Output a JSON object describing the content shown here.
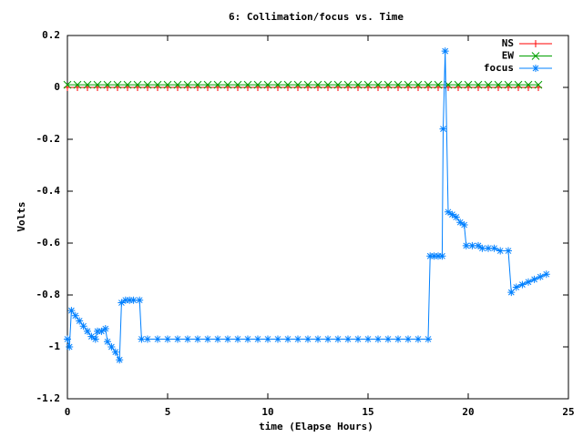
{
  "chart_data": {
    "type": "line",
    "title": "6: Collimation/focus vs. Time",
    "xlabel": "time (Elapse Hours)",
    "ylabel": "Volts",
    "xlim": [
      0,
      25
    ],
    "xticks": [
      0,
      5,
      10,
      15,
      20,
      25
    ],
    "ylim": [
      -1.2,
      0.2
    ],
    "yticks": [
      0.2,
      0,
      -0.2,
      -0.4,
      -0.6,
      -0.8,
      -1,
      -1.2
    ],
    "legend": "top-right",
    "series": [
      {
        "name": "NS",
        "color": "#ff0000",
        "marker": "plus",
        "x": [
          0,
          0.5,
          1,
          1.5,
          2,
          2.5,
          3,
          3.5,
          4,
          4.5,
          5,
          5.5,
          6,
          6.5,
          7,
          7.5,
          8,
          8.5,
          9,
          9.5,
          10,
          10.5,
          11,
          11.5,
          12,
          12.5,
          13,
          13.5,
          14,
          14.5,
          15,
          15.5,
          16,
          16.5,
          17,
          17.5,
          18,
          18.5,
          19,
          19.5,
          20,
          20.5,
          21,
          21.5,
          22,
          22.5,
          23,
          23.5
        ],
        "values": [
          0,
          0,
          0,
          0,
          0,
          0,
          0,
          0,
          0,
          0,
          0,
          0,
          0,
          0,
          0,
          0,
          0,
          0,
          0,
          0,
          0,
          0,
          0,
          0,
          0,
          0,
          0,
          0,
          0,
          0,
          0,
          0,
          0,
          0,
          0,
          0,
          0,
          0,
          0,
          0,
          0,
          0,
          0,
          0,
          0,
          0,
          0,
          0
        ]
      },
      {
        "name": "EW",
        "color": "#00a000",
        "marker": "cross",
        "x": [
          0,
          0.5,
          1,
          1.5,
          2,
          2.5,
          3,
          3.5,
          4,
          4.5,
          5,
          5.5,
          6,
          6.5,
          7,
          7.5,
          8,
          8.5,
          9,
          9.5,
          10,
          10.5,
          11,
          11.5,
          12,
          12.5,
          13,
          13.5,
          14,
          14.5,
          15,
          15.5,
          16,
          16.5,
          17,
          17.5,
          18,
          18.5,
          19,
          19.5,
          20,
          20.5,
          21,
          21.5,
          22,
          22.5,
          23,
          23.5
        ],
        "values": [
          0.01,
          0.01,
          0.01,
          0.01,
          0.01,
          0.01,
          0.01,
          0.01,
          0.01,
          0.01,
          0.01,
          0.01,
          0.01,
          0.01,
          0.01,
          0.01,
          0.01,
          0.01,
          0.01,
          0.01,
          0.01,
          0.01,
          0.01,
          0.01,
          0.01,
          0.01,
          0.01,
          0.01,
          0.01,
          0.01,
          0.01,
          0.01,
          0.01,
          0.01,
          0.01,
          0.01,
          0.01,
          0.01,
          0.01,
          0.01,
          0.01,
          0.01,
          0.01,
          0.01,
          0.01,
          0.01,
          0.01,
          0.01
        ]
      },
      {
        "name": "focus",
        "color": "#0080ff",
        "marker": "star",
        "x": [
          0,
          0.1,
          0.2,
          0.4,
          0.6,
          0.8,
          1,
          1.2,
          1.4,
          1.5,
          1.7,
          1.9,
          2,
          2.2,
          2.4,
          2.6,
          2.7,
          2.9,
          3.1,
          3.3,
          3.6,
          3.7,
          4,
          4.5,
          5,
          5.5,
          6,
          6.5,
          7,
          7.5,
          8,
          8.5,
          9,
          9.5,
          10,
          10.5,
          11,
          11.5,
          12,
          12.5,
          13,
          13.5,
          14,
          14.5,
          15,
          15.5,
          16,
          16.5,
          17,
          17.5,
          18,
          18.1,
          18.3,
          18.5,
          18.7,
          18.75,
          18.85,
          19,
          19.2,
          19.4,
          19.6,
          19.8,
          19.9,
          20.2,
          20.5,
          20.7,
          21,
          21.3,
          21.6,
          22,
          22.15,
          22.4,
          22.7,
          23,
          23.3,
          23.6,
          23.9
        ],
        "values": [
          -0.97,
          -1,
          -0.86,
          -0.88,
          -0.9,
          -0.92,
          -0.94,
          -0.96,
          -0.97,
          -0.94,
          -0.94,
          -0.93,
          -0.98,
          -1,
          -1.02,
          -1.05,
          -0.83,
          -0.82,
          -0.82,
          -0.82,
          -0.82,
          -0.97,
          -0.97,
          -0.97,
          -0.97,
          -0.97,
          -0.97,
          -0.97,
          -0.97,
          -0.97,
          -0.97,
          -0.97,
          -0.97,
          -0.97,
          -0.97,
          -0.97,
          -0.97,
          -0.97,
          -0.97,
          -0.97,
          -0.97,
          -0.97,
          -0.97,
          -0.97,
          -0.97,
          -0.97,
          -0.97,
          -0.97,
          -0.97,
          -0.97,
          -0.97,
          -0.65,
          -0.65,
          -0.65,
          -0.65,
          -0.16,
          0.14,
          -0.48,
          -0.49,
          -0.5,
          -0.52,
          -0.53,
          -0.61,
          -0.61,
          -0.61,
          -0.62,
          -0.62,
          -0.62,
          -0.63,
          -0.63,
          -0.79,
          -0.77,
          -0.76,
          -0.75,
          -0.74,
          -0.73,
          -0.72
        ]
      }
    ]
  }
}
